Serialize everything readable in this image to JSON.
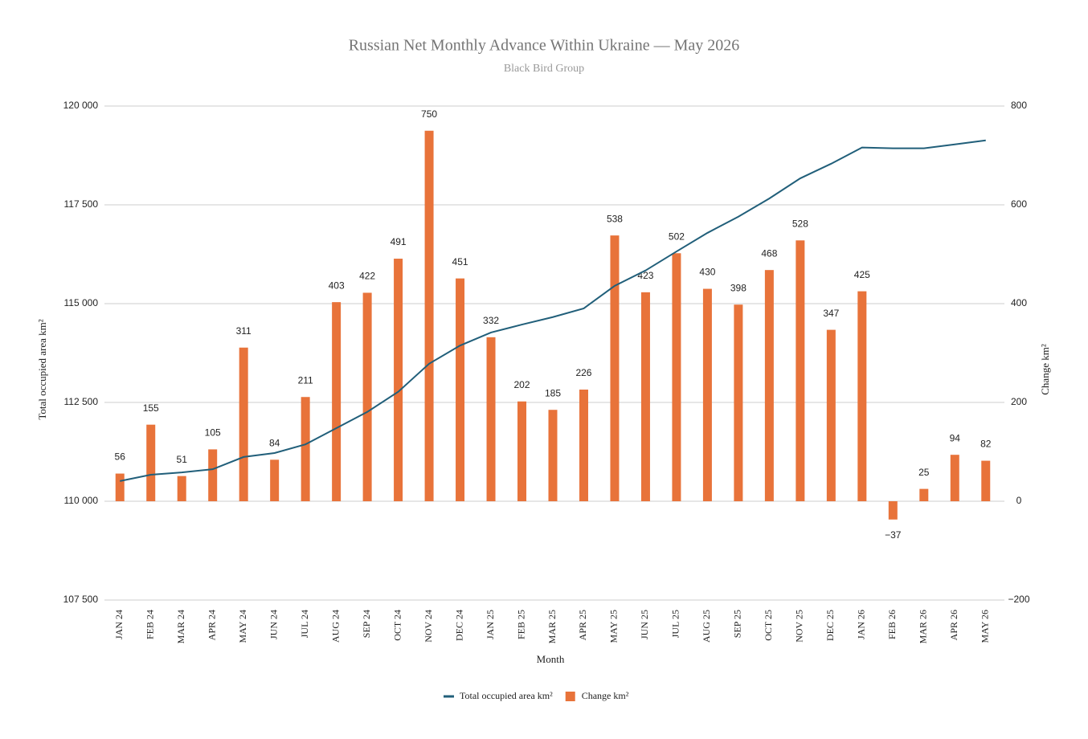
{
  "chart_data": {
    "type": "bar-line",
    "title": "Russian Net Monthly Advance Within Ukraine — May 2026",
    "subtitle": "Black Bird Group",
    "x_label": "Month",
    "y_label": "Total occupied area km²",
    "y2_label": "Change km²",
    "categories": [
      "JAN 24",
      "FEB 24",
      "MAR 24",
      "APR 24",
      "MAY 24",
      "JUN 24",
      "JUL 24",
      "AUG 24",
      "SEP 24",
      "OCT 24",
      "NOV 24",
      "DEC 24",
      "JAN 25",
      "FEB 25",
      "MAR 25",
      "APR 25",
      "MAY 25",
      "JUN 25",
      "JUL 25",
      "AUG 25",
      "SEP 25",
      "OCT 25",
      "NOV 25",
      "DEC 25",
      "JAN 26",
      "FEB 26",
      "MAR 26",
      "APR 26",
      "MAY 26"
    ],
    "series": [
      {
        "name": "Total occupied area km²",
        "type": "line",
        "color": "#215f7a",
        "values": [
          110510,
          110670,
          110730,
          110810,
          111120,
          111220,
          111440,
          111850,
          112260,
          112770,
          113480,
          113940,
          114270,
          114470,
          114660,
          114880,
          115450,
          115840,
          116320,
          116790,
          117200,
          117660,
          118170,
          118540,
          118950,
          118930,
          118930,
          119030,
          119130
        ]
      },
      {
        "name": "Change km²",
        "type": "bar",
        "color": "#e8733a",
        "axis": "y2",
        "values": [
          56,
          155,
          51,
          105,
          311,
          84,
          211,
          403,
          422,
          491,
          750,
          451,
          332,
          202,
          185,
          226,
          538,
          423,
          502,
          430,
          398,
          468,
          528,
          347,
          425,
          -37,
          25,
          94,
          82
        ],
        "value_labels": [
          "56",
          "155",
          "51",
          "105",
          "311",
          "84",
          "211",
          "403",
          "422",
          "491",
          "750",
          "451",
          "332",
          "202",
          "185",
          "226",
          "538",
          "423",
          "502",
          "430",
          "398",
          "468",
          "528",
          "347",
          "425",
          "−37",
          "25",
          "94",
          "82"
        ]
      }
    ],
    "ylim": [
      107500,
      120000
    ],
    "yticks": [
      {
        "value": 107500,
        "label": "107 500"
      },
      {
        "value": 110000,
        "label": "110 000"
      },
      {
        "value": 112500,
        "label": "112 500"
      },
      {
        "value": 115000,
        "label": "115 000"
      },
      {
        "value": 117500,
        "label": "117 500"
      },
      {
        "value": 120000,
        "label": "120 000"
      }
    ],
    "y2lim": [
      -200,
      800
    ],
    "y2ticks": [
      {
        "value": -200,
        "label": "−200"
      },
      0,
      200,
      400,
      600,
      800
    ],
    "grid": true,
    "legend": "bottom"
  }
}
